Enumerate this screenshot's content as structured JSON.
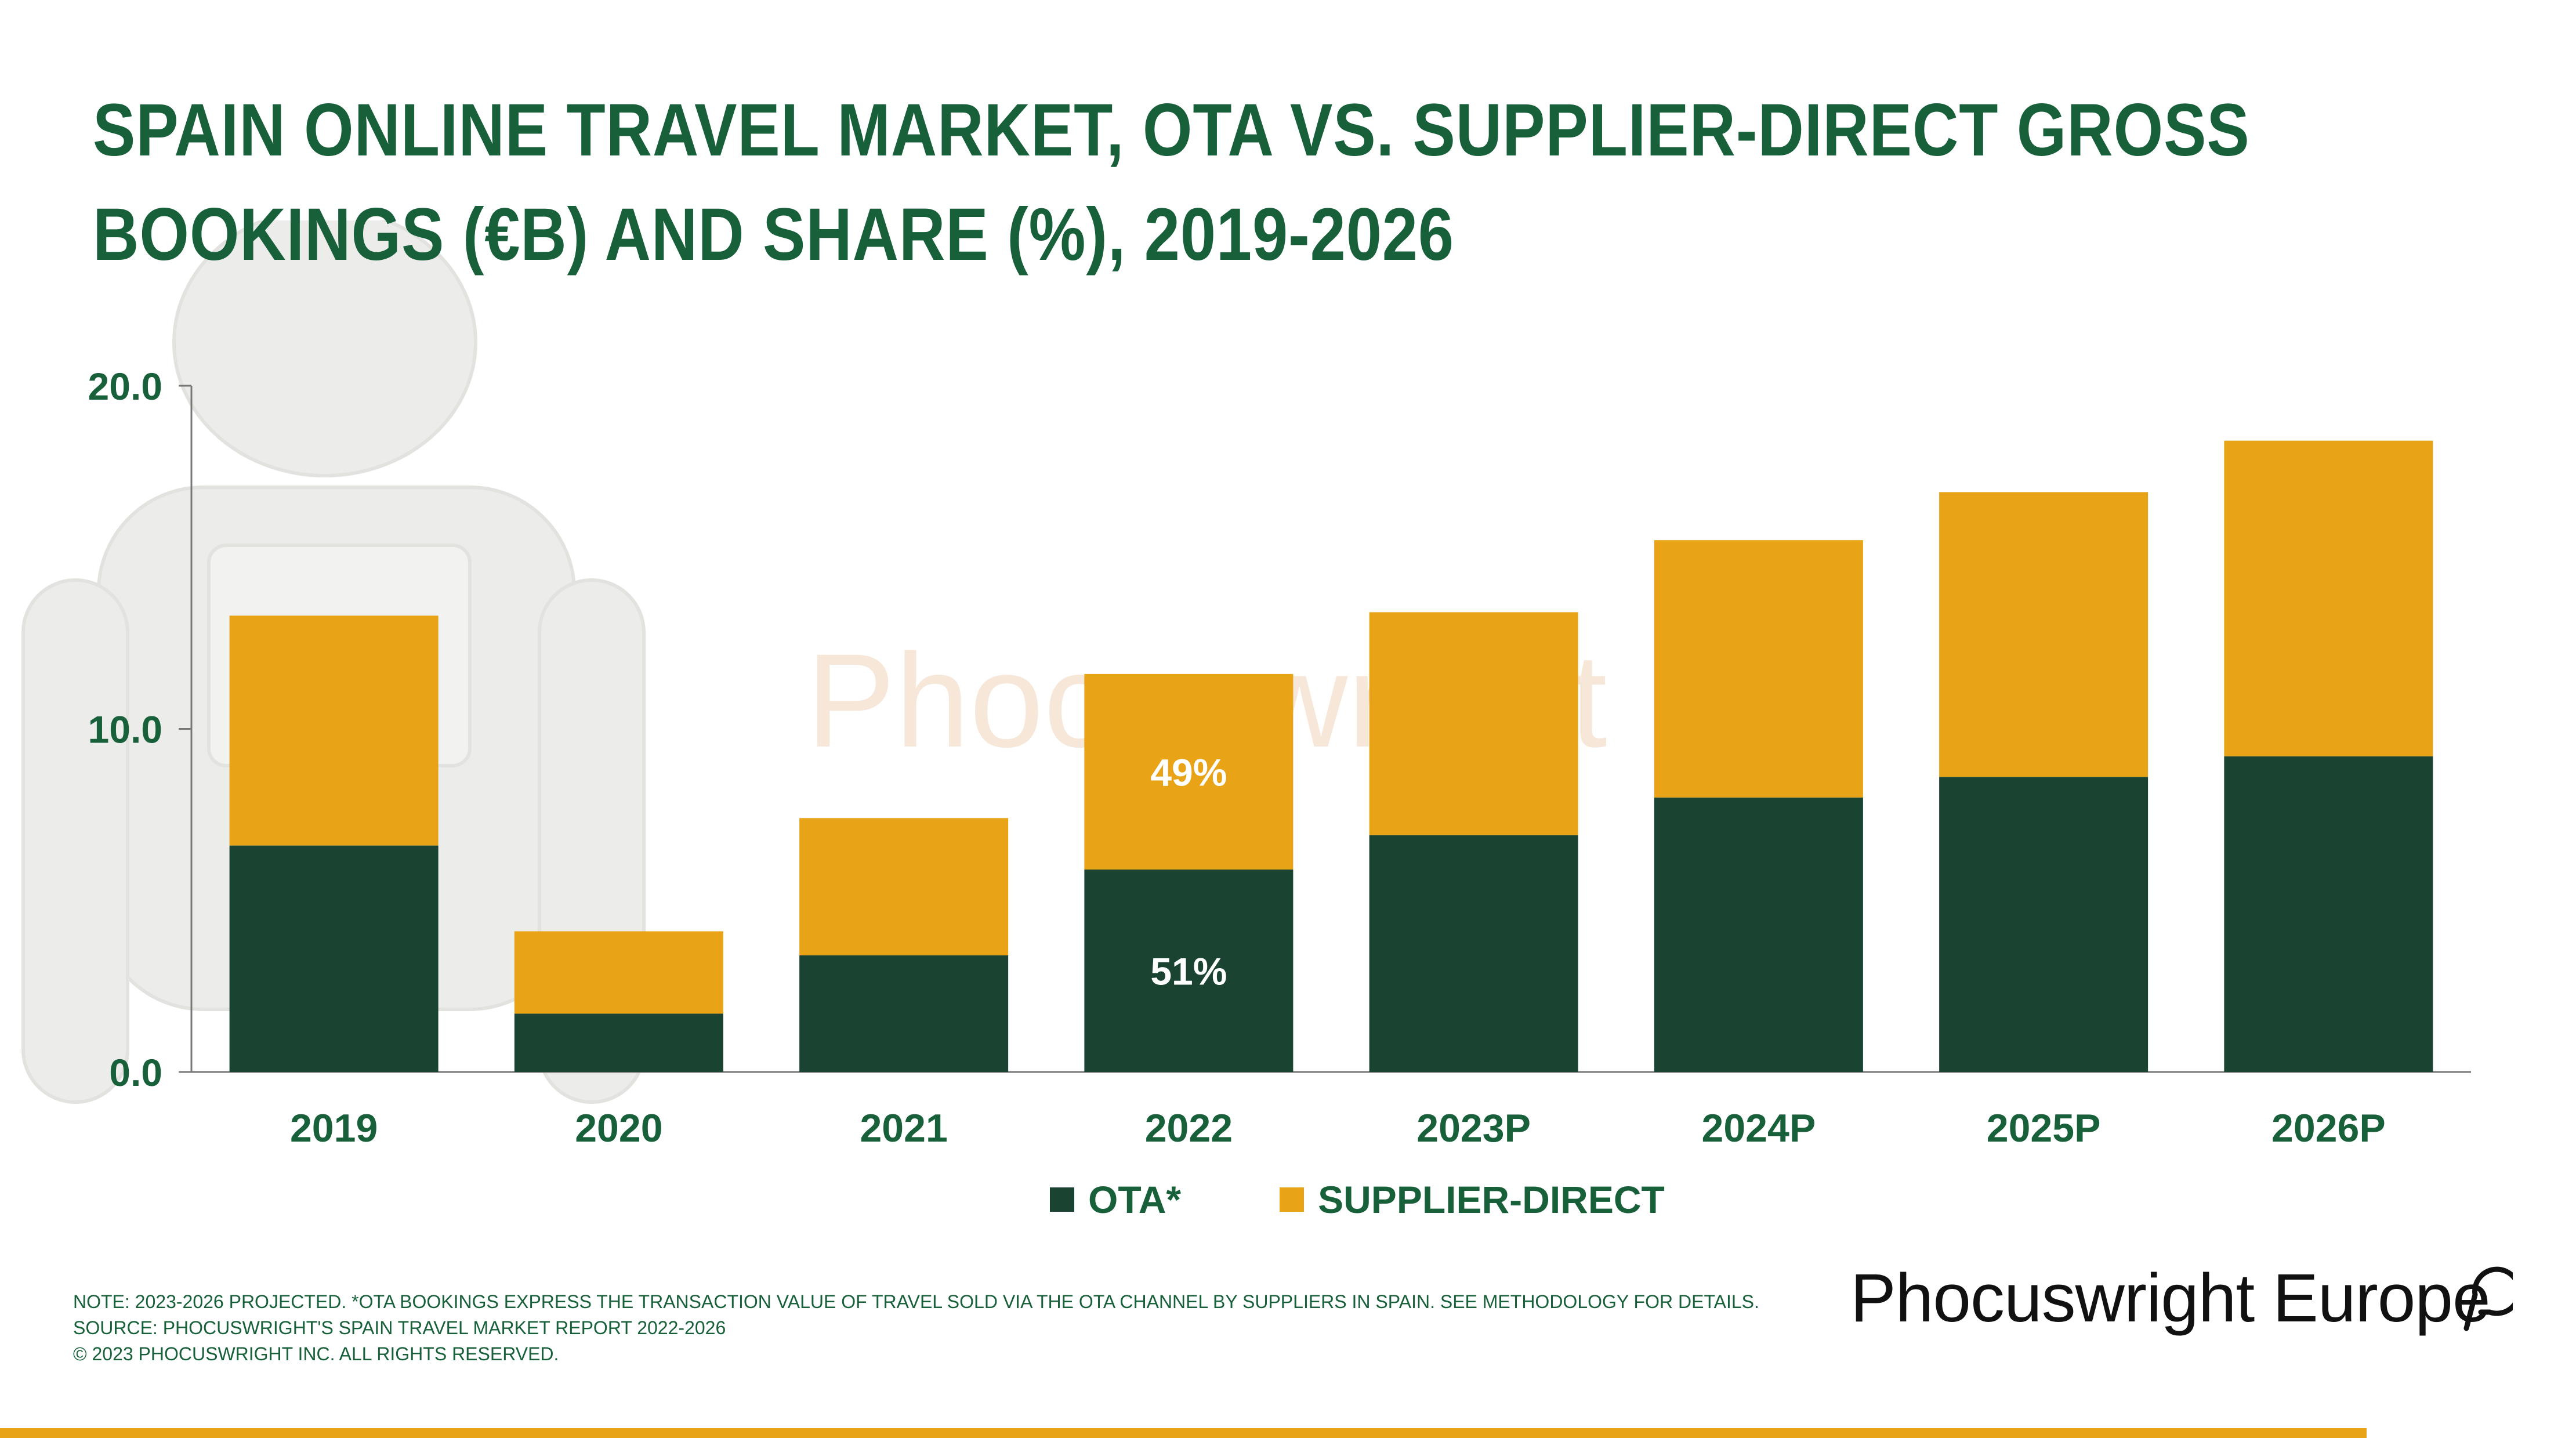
{
  "title_lines": [
    "SPAIN ONLINE TRAVEL MARKET, OTA VS. SUPPLIER-DIRECT GROSS",
    "BOOKINGS (€B) AND SHARE (%), 2019-2026"
  ],
  "chart_data": {
    "type": "bar",
    "stacked": true,
    "categories": [
      "2019",
      "2020",
      "2021",
      "2022",
      "2023P",
      "2024P",
      "2025P",
      "2026P"
    ],
    "series": [
      {
        "name": "OTA*",
        "color": "#1a4332",
        "values": [
          6.6,
          1.7,
          3.4,
          5.9,
          6.9,
          8.0,
          8.6,
          9.2
        ]
      },
      {
        "name": "SUPPLIER-DIRECT",
        "color": "#e8a317",
        "values": [
          6.7,
          2.4,
          4.0,
          5.7,
          6.5,
          7.5,
          8.3,
          9.2
        ]
      }
    ],
    "ylim": [
      0,
      20
    ],
    "yticks": [
      "0.0",
      "10.0",
      "20.0"
    ],
    "ytick_values": [
      0,
      10,
      20
    ],
    "annotations": [
      {
        "category": "2022",
        "series": "OTA*",
        "text": "51%"
      },
      {
        "category": "2022",
        "series": "SUPPLIER-DIRECT",
        "text": "49%"
      }
    ],
    "legend": "bottom-center"
  },
  "legend": {
    "items": [
      "OTA*",
      "SUPPLIER-DIRECT"
    ]
  },
  "notes": [
    "Note: 2023-2026 projected. *OTA bookings express the transaction value of travel sold via the OTA channel by suppliers in Spain. See methodology for details.",
    "Source: Phocuswright's Spain Travel Market Report 2022-2026",
    "© 2023 Phocuswright Inc. All Rights Reserved."
  ],
  "brand": "Phocuswright Europe",
  "watermark": "Phocuswright",
  "colors": {
    "title": "#17603a",
    "accent": "#e8a317",
    "ota": "#1a4332"
  }
}
